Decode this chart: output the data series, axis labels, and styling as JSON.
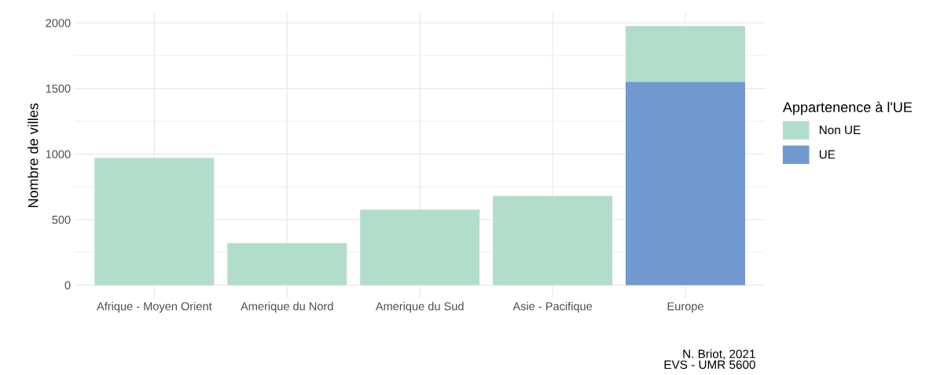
{
  "chart_data": {
    "type": "bar",
    "stacked": true,
    "ylabel": "Nombre de villes",
    "legend_title": "Appartenence à l'UE",
    "categories": [
      "Afrique - Moyen Orient",
      "Amerique du Nord",
      "Amerique du Sud",
      "Asie - Pacifique",
      "Europe"
    ],
    "series": [
      {
        "name": "UE",
        "color": "#7299cf",
        "values": [
          0,
          0,
          0,
          0,
          1550
        ]
      },
      {
        "name": "Non UE",
        "color": "#b3ddcb",
        "values": [
          970,
          320,
          575,
          680,
          425
        ]
      }
    ],
    "ylim": [
      -99,
      2074
    ],
    "yticks": [
      0,
      500,
      1000,
      1500,
      2000
    ],
    "grid": true,
    "legend": "right",
    "annotations": [
      "N. Briot, 2021\nEVS - UMR 5600"
    ]
  }
}
